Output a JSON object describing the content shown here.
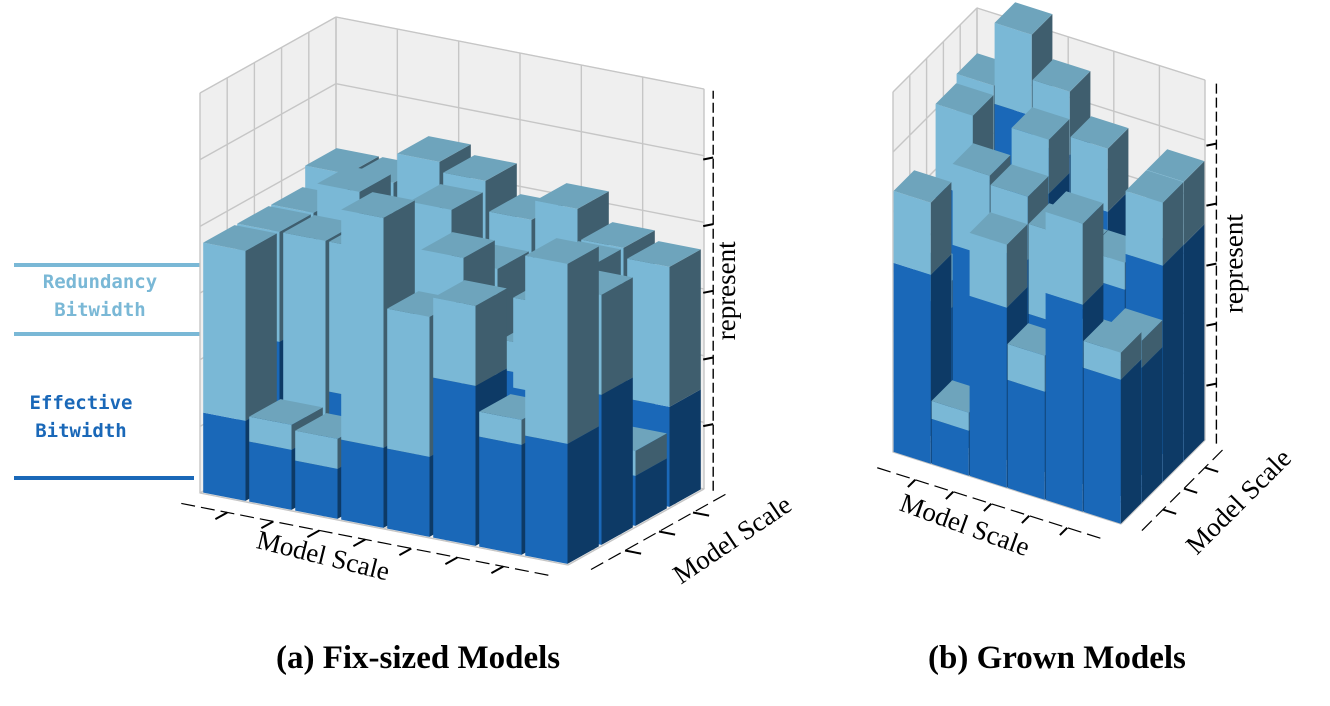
{
  "legend": {
    "redundancy": {
      "label": "Redundancy\nBitwidth",
      "color": "#7ab8d6"
    },
    "effective": {
      "label": "Effective\nBitwidth",
      "color": "#1a68b8"
    }
  },
  "colors": {
    "effective_front": "#1a68b8",
    "effective_side": "#0d3a66",
    "effective_top": "#2e7fcc",
    "redundancy_front": "#7ab8d6",
    "redundancy_side": "#3f5e6e",
    "redundancy_top": "#6ea4bc",
    "pane": "#efefef",
    "grid": "#c6c6c6"
  },
  "chart_data": [
    {
      "type": "bar3d",
      "caption": "(a) Fix-sized Models",
      "xlabel": "Model Scale",
      "ylabel": "Model Scale",
      "zlabel": "represent",
      "stack_order": [
        "Effective Bitwidth",
        "Redundancy Bitwidth"
      ],
      "grid": true,
      "bars": [
        {
          "x": 1,
          "y": 1,
          "effective": 1.6,
          "redundancy": 3.4
        },
        {
          "x": 2,
          "y": 1,
          "effective": 1.2,
          "redundancy": 0.5
        },
        {
          "x": 3,
          "y": 1,
          "effective": 1.0,
          "redundancy": 0.6
        },
        {
          "x": 4,
          "y": 1,
          "effective": 1.6,
          "redundancy": 4.6
        },
        {
          "x": 5,
          "y": 1,
          "effective": 1.6,
          "redundancy": 2.8
        },
        {
          "x": 6,
          "y": 1,
          "effective": 3.2,
          "redundancy": 1.6
        },
        {
          "x": 7,
          "y": 1,
          "effective": 2.2,
          "redundancy": 0.5
        },
        {
          "x": 8,
          "y": 1,
          "effective": 2.4,
          "redundancy": 3.6
        },
        {
          "x": 1,
          "y": 2,
          "effective": 2.8,
          "redundancy": 2.2
        },
        {
          "x": 2,
          "y": 2,
          "effective": 1.4,
          "redundancy": 3.6
        },
        {
          "x": 3,
          "y": 2,
          "effective": 2.0,
          "redundancy": 3.0
        },
        {
          "x": 4,
          "y": 2,
          "effective": 2.0,
          "redundancy": 0.6
        },
        {
          "x": 5,
          "y": 2,
          "effective": 1.4,
          "redundancy": 3.8
        },
        {
          "x": 6,
          "y": 2,
          "effective": 1.0,
          "redundancy": 0.5
        },
        {
          "x": 7,
          "y": 2,
          "effective": 2.8,
          "redundancy": 1.8
        },
        {
          "x": 8,
          "y": 2,
          "effective": 3.0,
          "redundancy": 2.0
        },
        {
          "x": 1,
          "y": 3,
          "effective": 2.4,
          "redundancy": 2.6
        },
        {
          "x": 2,
          "y": 3,
          "effective": 3.0,
          "redundancy": 2.6
        },
        {
          "x": 3,
          "y": 3,
          "effective": 2.6,
          "redundancy": 0.5
        },
        {
          "x": 4,
          "y": 3,
          "effective": 2.2,
          "redundancy": 3.4
        },
        {
          "x": 5,
          "y": 3,
          "effective": 1.8,
          "redundancy": 2.8
        },
        {
          "x": 6,
          "y": 3,
          "effective": 2.6,
          "redundancy": 0.6
        },
        {
          "x": 7,
          "y": 3,
          "effective": 2.6,
          "redundancy": 2.4
        },
        {
          "x": 8,
          "y": 3,
          "effective": 1.0,
          "redundancy": 0.5
        },
        {
          "x": 1,
          "y": 4,
          "effective": 3.4,
          "redundancy": 2.0
        },
        {
          "x": 2,
          "y": 4,
          "effective": 3.8,
          "redundancy": 1.6
        },
        {
          "x": 3,
          "y": 4,
          "effective": 2.8,
          "redundancy": 3.2
        },
        {
          "x": 4,
          "y": 4,
          "effective": 3.2,
          "redundancy": 2.6
        },
        {
          "x": 5,
          "y": 4,
          "effective": 3.0,
          "redundancy": 2.2
        },
        {
          "x": 6,
          "y": 4,
          "effective": 2.4,
          "redundancy": 3.2
        },
        {
          "x": 7,
          "y": 4,
          "effective": 3.6,
          "redundancy": 1.4
        },
        {
          "x": 8,
          "y": 4,
          "effective": 2.0,
          "redundancy": 2.8
        }
      ]
    },
    {
      "type": "bar3d",
      "caption": "(b) Grown Models",
      "xlabel": "Model Scale",
      "ylabel": "Model Scale",
      "zlabel": "represent",
      "stack_order": [
        "Effective Bitwidth",
        "Redundancy Bitwidth"
      ],
      "grid": true,
      "bars": [
        {
          "x": 1,
          "y": 1,
          "effective": 4.2,
          "redundancy": 1.6
        },
        {
          "x": 2,
          "y": 1,
          "effective": 1.0,
          "redundancy": 0.4
        },
        {
          "x": 3,
          "y": 1,
          "effective": 4.0,
          "redundancy": 1.4
        },
        {
          "x": 4,
          "y": 1,
          "effective": 2.4,
          "redundancy": 0.8
        },
        {
          "x": 5,
          "y": 1,
          "effective": 4.6,
          "redundancy": 1.8
        },
        {
          "x": 6,
          "y": 1,
          "effective": 3.2,
          "redundancy": 0.6
        },
        {
          "x": 1,
          "y": 2,
          "effective": 3.0,
          "redundancy": 0.6
        },
        {
          "x": 2,
          "y": 2,
          "effective": 4.4,
          "redundancy": 1.8
        },
        {
          "x": 3,
          "y": 2,
          "effective": 4.6,
          "redundancy": 1.4
        },
        {
          "x": 4,
          "y": 2,
          "effective": 3.4,
          "redundancy": 2.0
        },
        {
          "x": 5,
          "y": 2,
          "effective": 2.6,
          "redundancy": 0.6
        },
        {
          "x": 6,
          "y": 2,
          "effective": 3.0,
          "redundancy": 0.6
        },
        {
          "x": 1,
          "y": 3,
          "effective": 5.0,
          "redundancy": 1.8
        },
        {
          "x": 2,
          "y": 3,
          "effective": 3.6,
          "redundancy": 0.6
        },
        {
          "x": 3,
          "y": 3,
          "effective": 5.6,
          "redundancy": 1.2
        },
        {
          "x": 4,
          "y": 3,
          "effective": 3.0,
          "redundancy": 1.6
        },
        {
          "x": 5,
          "y": 3,
          "effective": 4.0,
          "redundancy": 0.6
        },
        {
          "x": 6,
          "y": 3,
          "effective": 4.8,
          "redundancy": 1.4
        },
        {
          "x": 1,
          "y": 4,
          "effective": 5.2,
          "redundancy": 1.8
        },
        {
          "x": 2,
          "y": 4,
          "effective": 6.6,
          "redundancy": 1.8
        },
        {
          "x": 3,
          "y": 4,
          "effective": 6.0,
          "redundancy": 1.4
        },
        {
          "x": 4,
          "y": 4,
          "effective": 5.0,
          "redundancy": 1.4
        },
        {
          "x": 5,
          "y": 4,
          "effective": 3.4,
          "redundancy": 0.6
        },
        {
          "x": 6,
          "y": 4,
          "effective": 4.8,
          "redundancy": 1.4
        }
      ]
    }
  ]
}
